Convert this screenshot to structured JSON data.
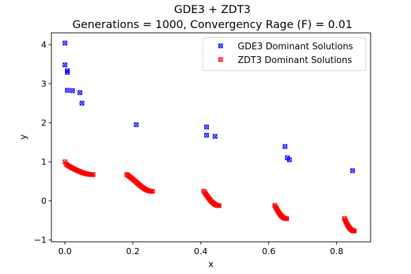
{
  "chart_data": {
    "type": "scatter",
    "title": "GDE3 + ZDT3",
    "subtitle": "Generations = 1000, Convergency Rage (F) = 0.01",
    "xlabel": "x",
    "ylabel": "y",
    "xlim": [
      -0.04,
      0.9
    ],
    "ylim": [
      -1.05,
      4.3
    ],
    "xticks": [
      0.0,
      0.2,
      0.4,
      0.6,
      0.8
    ],
    "xtick_labels": [
      "0.0",
      "0.2",
      "0.4",
      "0.6",
      "0.8"
    ],
    "yticks": [
      -1,
      0,
      1,
      2,
      3,
      4
    ],
    "ytick_labels": [
      "−1",
      "0",
      "1",
      "2",
      "3",
      "4"
    ],
    "grid": false,
    "legend_position": "top-right",
    "marker": "x-square",
    "series": [
      {
        "name": "GDE3 Dominant Solutions",
        "color": "#0000ff",
        "points": [
          [
            0.0,
            4.04
          ],
          [
            0.0,
            3.48
          ],
          [
            0.007,
            3.33
          ],
          [
            0.007,
            3.29
          ],
          [
            0.007,
            2.83
          ],
          [
            0.022,
            2.82
          ],
          [
            0.044,
            2.77
          ],
          [
            0.05,
            2.5
          ],
          [
            0.21,
            1.95
          ],
          [
            0.417,
            1.89
          ],
          [
            0.417,
            1.68
          ],
          [
            0.442,
            1.65
          ],
          [
            0.648,
            1.39
          ],
          [
            0.655,
            1.1
          ],
          [
            0.661,
            1.05
          ],
          [
            0.847,
            0.77
          ]
        ]
      },
      {
        "name": "ZDT3 Dominant Solutions",
        "color": "#ff0000",
        "segments": [
          {
            "x_start": 0.0,
            "x_end": 0.083,
            "points": 24
          },
          {
            "x_start": 0.182,
            "x_end": 0.258,
            "points": 24
          },
          {
            "x_start": 0.409,
            "x_end": 0.454,
            "points": 18
          },
          {
            "x_start": 0.618,
            "x_end": 0.653,
            "points": 16
          },
          {
            "x_start": 0.823,
            "x_end": 0.852,
            "points": 14
          }
        ],
        "formula": "y = 1 - sqrt(x) - x*sin(10*pi*x)"
      }
    ]
  }
}
